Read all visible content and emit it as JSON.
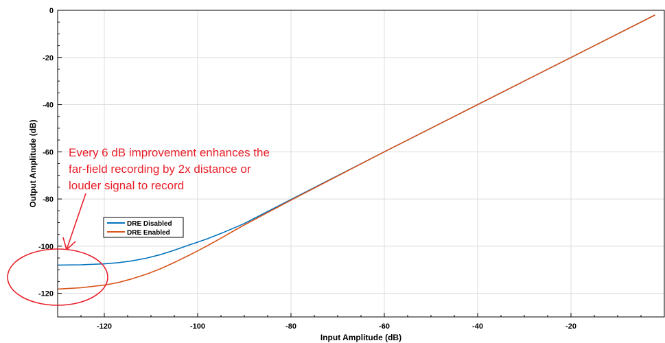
{
  "chart_data": {
    "type": "line",
    "xlabel": "Input Amplitude (dB)",
    "ylabel": "Output Amplitude (dB)",
    "xlim": [
      -130,
      0
    ],
    "ylim": [
      -130,
      0
    ],
    "x_ticks": [
      -120,
      -100,
      -80,
      -60,
      -40,
      -20
    ],
    "y_ticks": [
      0,
      -20,
      -40,
      -60,
      -80,
      -100,
      -120
    ],
    "grid": true,
    "legend_position": "center-left",
    "series": [
      {
        "name": "DRE Disabled",
        "color": "#0072bd",
        "x": [
          -130,
          -125,
          -120,
          -117,
          -114,
          -111,
          -108,
          -105,
          -102,
          -100,
          -98,
          -95,
          -92,
          -90,
          -80,
          -60,
          -40,
          -20,
          -2
        ],
        "y": [
          -108,
          -107.9,
          -107.5,
          -107.0,
          -106.2,
          -105.1,
          -103.6,
          -101.7,
          -99.6,
          -98.3,
          -96.9,
          -94.6,
          -92.1,
          -90.4,
          -80.2,
          -60,
          -40,
          -20,
          -2
        ]
      },
      {
        "name": "DRE Enabled",
        "color": "#d95319",
        "x": [
          -130,
          -125,
          -120,
          -117,
          -114,
          -111,
          -108,
          -105,
          -102,
          -100,
          -98,
          -95,
          -92,
          -90,
          -80,
          -60,
          -40,
          -20,
          -2
        ],
        "y": [
          -118.2,
          -117.6,
          -116.5,
          -115.4,
          -113.8,
          -111.9,
          -109.6,
          -106.9,
          -104.0,
          -102.0,
          -99.9,
          -96.6,
          -93.2,
          -91.0,
          -80.5,
          -60,
          -40,
          -20,
          -2
        ]
      }
    ],
    "annotations": {
      "text_lines": [
        "Every 6 dB improvement enhances the",
        "far-field recording by 2x distance or",
        "louder signal to record"
      ],
      "color": "#e8202a"
    }
  }
}
